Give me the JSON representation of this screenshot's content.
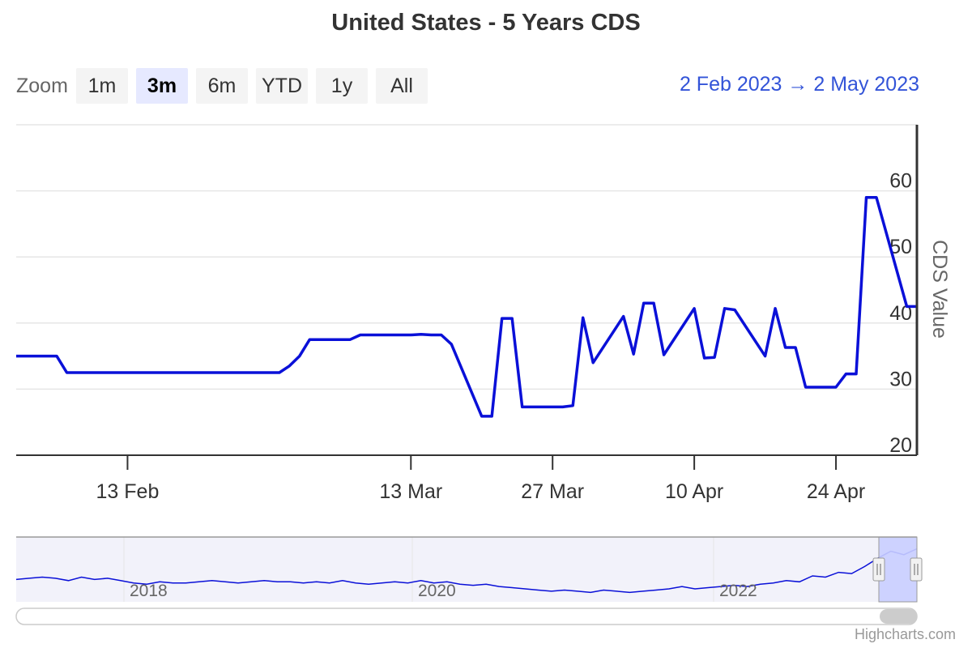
{
  "chart_data": {
    "type": "line",
    "title": "United States - 5 Years CDS",
    "ylabel": "CDS Value",
    "ylim": [
      20,
      70
    ],
    "y_ticks": [
      20,
      30,
      40,
      50,
      60
    ],
    "y_axis_side": "right",
    "x_range": [
      "2023-02-02",
      "2023-05-02"
    ],
    "x_ticks": [
      {
        "date": "2023-02-13",
        "label": "13 Feb"
      },
      {
        "date": "2023-03-13",
        "label": "13 Mar"
      },
      {
        "date": "2023-03-27",
        "label": "27 Mar"
      },
      {
        "date": "2023-04-10",
        "label": "10 Apr"
      },
      {
        "date": "2023-04-24",
        "label": "24 Apr"
      }
    ],
    "grid": true,
    "series": [
      {
        "color": "#0a10d8",
        "x": [
          "2023-02-02",
          "2023-02-03",
          "2023-02-06",
          "2023-02-07",
          "2023-02-08",
          "2023-02-09",
          "2023-02-10",
          "2023-02-13",
          "2023-02-14",
          "2023-02-15",
          "2023-02-16",
          "2023-02-17",
          "2023-02-20",
          "2023-02-21",
          "2023-02-22",
          "2023-02-23",
          "2023-02-24",
          "2023-02-27",
          "2023-02-28",
          "2023-03-01",
          "2023-03-02",
          "2023-03-03",
          "2023-03-06",
          "2023-03-07",
          "2023-03-08",
          "2023-03-09",
          "2023-03-10",
          "2023-03-13",
          "2023-03-14",
          "2023-03-15",
          "2023-03-16",
          "2023-03-17",
          "2023-03-20",
          "2023-03-21",
          "2023-03-22",
          "2023-03-23",
          "2023-03-24",
          "2023-03-27",
          "2023-03-28",
          "2023-03-29",
          "2023-03-30",
          "2023-03-31",
          "2023-04-03",
          "2023-04-04",
          "2023-04-05",
          "2023-04-06",
          "2023-04-07",
          "2023-04-10",
          "2023-04-11",
          "2023-04-12",
          "2023-04-13",
          "2023-04-14",
          "2023-04-17",
          "2023-04-18",
          "2023-04-19",
          "2023-04-20",
          "2023-04-21",
          "2023-04-24",
          "2023-04-25",
          "2023-04-26",
          "2023-04-27",
          "2023-04-28",
          "2023-05-01",
          "2023-05-02"
        ],
        "y": [
          35.0,
          35.0,
          35.0,
          32.5,
          32.5,
          32.5,
          32.5,
          32.5,
          32.5,
          32.5,
          32.5,
          32.5,
          32.5,
          32.5,
          32.5,
          32.5,
          32.5,
          32.5,
          32.5,
          33.5,
          35.0,
          37.5,
          37.5,
          37.5,
          38.2,
          38.2,
          38.2,
          38.2,
          38.3,
          38.2,
          38.2,
          36.8,
          25.9,
          25.9,
          40.7,
          40.7,
          27.3,
          27.3,
          27.3,
          27.5,
          40.8,
          34.0,
          41.0,
          35.3,
          43.0,
          43.0,
          35.2,
          42.2,
          34.7,
          34.8,
          42.2,
          42.0,
          35.0,
          42.2,
          36.3,
          36.3,
          30.3,
          30.3,
          32.3,
          32.3,
          59.0,
          59.0,
          42.5,
          42.5
        ]
      }
    ]
  },
  "zoom": {
    "label": "Zoom",
    "buttons": [
      "1m",
      "3m",
      "6m",
      "YTD",
      "1y",
      "All"
    ],
    "selected": "3m"
  },
  "range_display": {
    "from": "2 Feb 2023",
    "arrow": "→",
    "to": "2 May 2023"
  },
  "navigator": {
    "x_ticks": [
      "2018",
      "2020",
      "2022"
    ],
    "values": [
      34,
      35,
      36,
      35,
      33,
      36,
      34,
      35,
      33,
      31,
      30,
      32,
      31,
      31,
      32,
      33,
      32,
      31,
      32,
      33,
      32,
      32,
      31,
      32,
      31,
      33,
      31,
      30,
      31,
      32,
      31,
      33,
      31,
      32,
      30,
      29,
      30,
      28,
      27,
      26,
      25,
      24,
      25,
      24,
      23,
      25,
      24,
      23,
      24,
      25,
      26,
      28,
      26,
      27,
      28,
      29,
      28,
      30,
      31,
      33,
      32,
      37,
      36,
      40,
      39,
      45,
      52,
      58,
      55,
      60
    ],
    "series_color": "#0a10d8",
    "mask_color": "#c9ceff"
  },
  "credits": "Highcharts.com"
}
